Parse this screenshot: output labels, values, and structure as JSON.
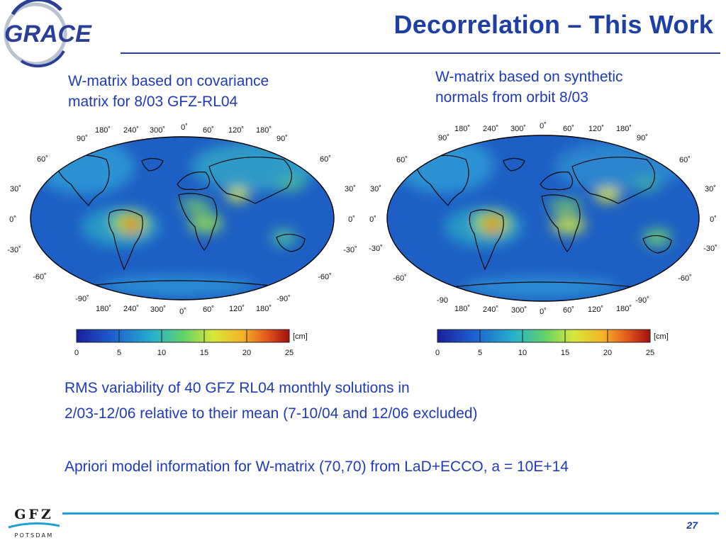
{
  "title": "Decorrelation – This Work",
  "logo_grace": "GRACE",
  "logo_gfz": {
    "name": "GFZ",
    "sub": "Potsdam"
  },
  "panels": [
    {
      "caption_lines": [
        "W-matrix based on covariance",
        "matrix for 8/03 GFZ-RL04"
      ],
      "lon_top": [
        "180˚",
        "240˚",
        "300˚",
        "0˚",
        "60˚",
        "120˚",
        "180˚"
      ],
      "lon_bottom": [
        "180˚",
        "240˚",
        "300˚",
        "0˚",
        "60˚",
        "120˚",
        "180˚"
      ],
      "lat_left": [
        "90˚",
        "60˚",
        "30˚",
        "0˚",
        "-30˚",
        "-60˚",
        "-90˚"
      ],
      "lat_right": [
        "90˚",
        "60˚",
        "30˚",
        "0˚",
        "-30˚",
        "-60˚",
        "-90˚"
      ],
      "colorbar": {
        "unit": "[cm]",
        "ticks": [
          "0",
          "5",
          "10",
          "15",
          "20",
          "25"
        ]
      }
    },
    {
      "caption_lines": [
        "W-matrix based on synthetic",
        "normals from orbit 8/03"
      ],
      "lon_top": [
        "180˚",
        "240˚",
        "300˚",
        "0˚",
        "60˚",
        "120˚",
        "180˚"
      ],
      "lon_bottom": [
        "180˚",
        "240˚",
        "300˚",
        "0˚",
        "60˚",
        "120˚",
        "180˚"
      ],
      "lat_left": [
        "90˚",
        "60˚",
        "30˚",
        "0˚",
        "-30˚",
        "-60˚",
        "-90"
      ],
      "lat_right": [
        "90˚",
        "60˚",
        "30˚",
        "0˚",
        "-30˚",
        "-60˚",
        "-90˚"
      ],
      "colorbar": {
        "unit": "[cm]",
        "ticks": [
          "0",
          "5",
          "10",
          "15",
          "20",
          "25"
        ]
      }
    }
  ],
  "text_lines": {
    "line1": "RMS variability of 40 GFZ RL04 monthly solutions in",
    "line2": "2/03-12/06 relative to their mean (7-10/04 and 12/06 excluded)",
    "line3": "Apriori model information for W-matrix (70,70) from LaD+ECCO, a = 10E+14"
  },
  "page_number": "27",
  "colors": {
    "title": "#1e3fa6",
    "caption": "#1f3bb8",
    "footer_rule": "#1fa0d6",
    "map_ocean": "#1d5fc4",
    "map_land_hot": "#e0301e"
  }
}
